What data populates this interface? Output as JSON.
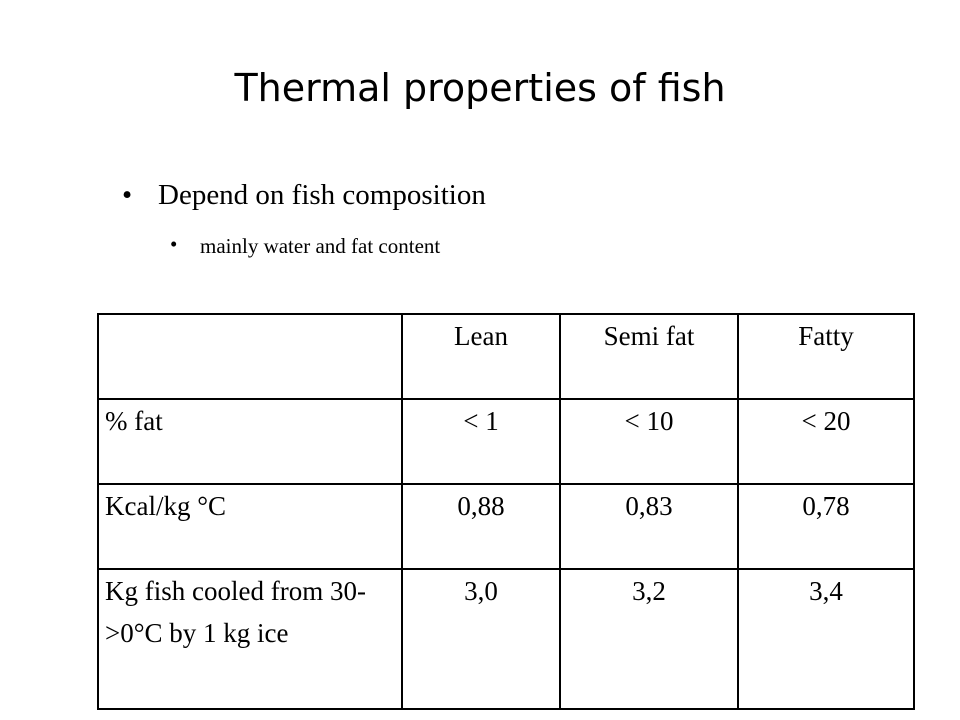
{
  "title": "Thermal properties of fish",
  "bullets": [
    {
      "text": "Depend on fish composition",
      "subbullets": [
        "mainly water and fat content"
      ]
    }
  ],
  "table": {
    "columns": [
      "Lean",
      "Semi fat",
      "Fatty"
    ],
    "rows": [
      {
        "label": "% fat",
        "cells": [
          "< 1",
          "< 10",
          "< 20"
        ]
      },
      {
        "label": "Kcal/kg °C",
        "cells": [
          "0,88",
          "0,83",
          "0,78"
        ]
      },
      {
        "label": "Kg fish cooled from 30->0°C by 1 kg ice",
        "cells": [
          "3,0",
          "3,2",
          "3,4"
        ]
      }
    ]
  }
}
